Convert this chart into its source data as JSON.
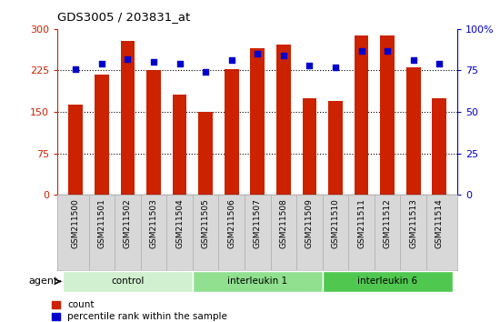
{
  "title": "GDS3005 / 203831_at",
  "samples": [
    "GSM211500",
    "GSM211501",
    "GSM211502",
    "GSM211503",
    "GSM211504",
    "GSM211505",
    "GSM211506",
    "GSM211507",
    "GSM211508",
    "GSM211509",
    "GSM211510",
    "GSM211511",
    "GSM211512",
    "GSM211513",
    "GSM211514"
  ],
  "counts": [
    164,
    218,
    278,
    225,
    182,
    150,
    228,
    265,
    272,
    175,
    170,
    288,
    288,
    230,
    174
  ],
  "percentiles": [
    76,
    79,
    82,
    80,
    79,
    74,
    81,
    85,
    84,
    78,
    77,
    87,
    87,
    81,
    79
  ],
  "groups": [
    {
      "label": "control",
      "start": 0,
      "end": 5,
      "color": "#d0f0d0"
    },
    {
      "label": "interleukin 1",
      "start": 5,
      "end": 10,
      "color": "#90e090"
    },
    {
      "label": "interleukin 6",
      "start": 10,
      "end": 15,
      "color": "#50c850"
    }
  ],
  "bar_color": "#cc2200",
  "dot_color": "#0000cc",
  "ylim_left": [
    0,
    300
  ],
  "ylim_right": [
    0,
    100
  ],
  "yticks_left": [
    0,
    75,
    150,
    225,
    300
  ],
  "yticks_right": [
    0,
    25,
    50,
    75,
    100
  ],
  "grid_values": [
    75,
    150,
    225
  ],
  "agent_label": "agent",
  "legend_count": "count",
  "legend_percentile": "percentile rank within the sample",
  "bar_width": 0.55,
  "bar_color_hex": "#bb2200",
  "label_bg_color": "#d8d8d8",
  "label_border_color": "#aaaaaa"
}
